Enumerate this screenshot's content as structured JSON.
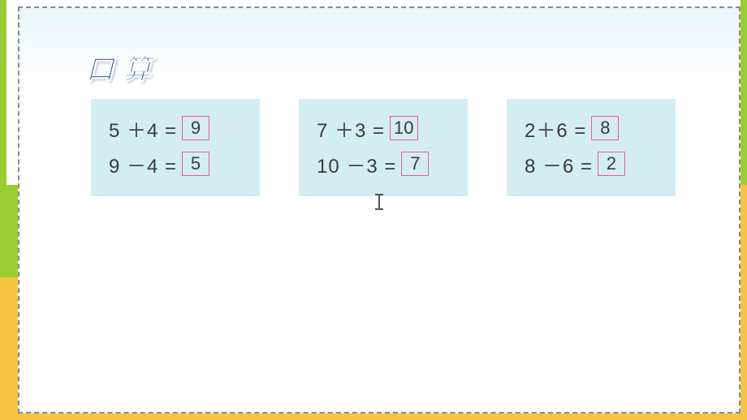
{
  "title": "口算",
  "colors": {
    "frame_green": "#9acd32",
    "frame_yellow": "#f5c542",
    "dashed_border": "#888888",
    "sky_top": "#e8f4fb",
    "card_bg": "#d4edf3",
    "answer_border": "#e85a9e",
    "title_color": "#1a4a9e",
    "text_color": "#3a3a3a"
  },
  "typography": {
    "title_fontsize": 34,
    "equation_fontsize": 24,
    "answer_fontsize": 22
  },
  "layout": {
    "card_gap": 48,
    "card_padding": "14 22 18 22",
    "answer_box_min_width": 34,
    "answer_box_height": 30
  },
  "cards": [
    {
      "equations": [
        {
          "expression": "5 ＋4 =",
          "answer": "9"
        },
        {
          "expression": "9 －4 =",
          "answer": "5"
        }
      ]
    },
    {
      "equations": [
        {
          "expression": "7 ＋3 =",
          "answer": "10"
        },
        {
          "expression": "10 －3 =",
          "answer": "7"
        }
      ]
    },
    {
      "equations": [
        {
          "expression": "2＋6 =",
          "answer": "8"
        },
        {
          "expression": "8 －6 =",
          "answer": "2"
        }
      ]
    }
  ]
}
